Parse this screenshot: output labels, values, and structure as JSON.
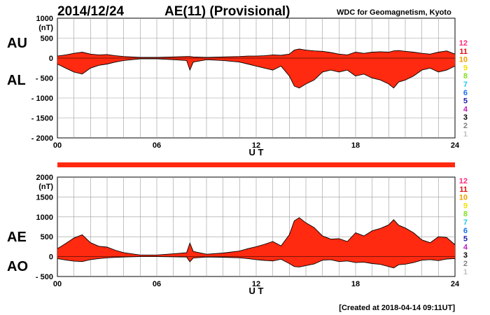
{
  "header": {
    "date": "2014/12/24",
    "title": "AE(11) (Provisional)",
    "source": "WDC for Geomagnetism, Kyoto"
  },
  "footer": {
    "created": "[Created at 2018-04-14 09:11UT]"
  },
  "colors": {
    "fill": "#ff2a10",
    "line": "#000000",
    "grid": "#999999",
    "band": "#ff2a10"
  },
  "station_legend": [
    {
      "label": "12",
      "color": "#ff2a7f"
    },
    {
      "label": "11",
      "color": "#e01010"
    },
    {
      "label": "10",
      "color": "#f0a000"
    },
    {
      "label": "9",
      "color": "#f0e000"
    },
    {
      "label": "8",
      "color": "#80e020"
    },
    {
      "label": "7",
      "color": "#20c8e8"
    },
    {
      "label": "6",
      "color": "#1870f0"
    },
    {
      "label": "5",
      "color": "#2020b0"
    },
    {
      "label": "4",
      "color": "#c020c0"
    },
    {
      "label": "3",
      "color": "#000000"
    },
    {
      "label": "2",
      "color": "#808080"
    },
    {
      "label": "1",
      "color": "#c0c0c0"
    }
  ],
  "chart_data": [
    {
      "type": "area",
      "upper_label": "AU",
      "lower_label": "AL",
      "unit": "(nT)",
      "xlabel": "U T",
      "xlim": [
        0,
        24
      ],
      "ylim": [
        -2000,
        1000
      ],
      "x_ticks": [
        "00",
        "06",
        "12",
        "18",
        "24"
      ],
      "y_ticks": [
        "1000",
        "500",
        "0",
        "- 500",
        "- 1000",
        "- 1500",
        "- 2000"
      ],
      "x": [
        0,
        0.5,
        1,
        1.5,
        2,
        2.5,
        3,
        3.5,
        4,
        5,
        6,
        7,
        7.8,
        8,
        8.2,
        9,
        10,
        11,
        11.5,
        12,
        12.5,
        13,
        13.5,
        14,
        14.3,
        14.6,
        15,
        15.5,
        16,
        16.5,
        17,
        17.5,
        18,
        18.5,
        19,
        19.5,
        20,
        20.3,
        20.6,
        21,
        21.5,
        22,
        22.5,
        23,
        23.5,
        24
      ],
      "series": [
        {
          "values": [
            50,
            80,
            120,
            150,
            100,
            80,
            90,
            60,
            40,
            20,
            20,
            30,
            40,
            40,
            30,
            20,
            30,
            40,
            50,
            50,
            60,
            80,
            70,
            100,
            200,
            230,
            200,
            180,
            170,
            140,
            100,
            80,
            150,
            120,
            150,
            160,
            150,
            180,
            190,
            170,
            150,
            120,
            100,
            150,
            180,
            100
          ]
        },
        {
          "values": [
            -150,
            -250,
            -350,
            -400,
            -250,
            -180,
            -150,
            -100,
            -60,
            -20,
            -20,
            -40,
            -60,
            -300,
            -100,
            -40,
            -60,
            -100,
            -150,
            -200,
            -250,
            -300,
            -200,
            -450,
            -700,
            -750,
            -650,
            -550,
            -350,
            -300,
            -350,
            -300,
            -450,
            -400,
            -500,
            -550,
            -650,
            -750,
            -600,
            -550,
            -450,
            -300,
            -250,
            -350,
            -300,
            -200
          ]
        }
      ]
    },
    {
      "type": "area",
      "upper_label": "AE",
      "lower_label": "AO",
      "unit": "(nT)",
      "xlabel": "U T",
      "xlim": [
        0,
        24
      ],
      "ylim": [
        -500,
        2000
      ],
      "x_ticks": [
        "00",
        "06",
        "12",
        "18",
        "24"
      ],
      "y_ticks": [
        "2000",
        "1500",
        "1000",
        "500",
        "0",
        "- 500"
      ],
      "x": [
        0,
        0.5,
        1,
        1.5,
        2,
        2.5,
        3,
        3.5,
        4,
        5,
        6,
        7,
        7.8,
        8,
        8.2,
        9,
        10,
        11,
        11.5,
        12,
        12.5,
        13,
        13.5,
        14,
        14.3,
        14.6,
        15,
        15.5,
        16,
        16.5,
        17,
        17.5,
        18,
        18.5,
        19,
        19.5,
        20,
        20.3,
        20.6,
        21,
        21.5,
        22,
        22.5,
        23,
        23.5,
        24
      ],
      "series": [
        {
          "values": [
            200,
            330,
            470,
            550,
            350,
            260,
            240,
            160,
            100,
            40,
            40,
            70,
            100,
            340,
            130,
            60,
            90,
            140,
            200,
            250,
            310,
            380,
            270,
            550,
            900,
            980,
            850,
            730,
            520,
            440,
            450,
            380,
            600,
            520,
            650,
            710,
            800,
            930,
            790,
            720,
            600,
            420,
            350,
            500,
            480,
            300
          ]
        },
        {
          "values": [
            -50,
            -85,
            -115,
            -125,
            -75,
            -50,
            -30,
            -20,
            -10,
            0,
            0,
            -5,
            -10,
            -130,
            -35,
            -10,
            -15,
            -30,
            -50,
            -75,
            -95,
            -110,
            -65,
            -175,
            -250,
            -260,
            -225,
            -185,
            -90,
            -80,
            -125,
            -110,
            -150,
            -140,
            -175,
            -195,
            -250,
            -285,
            -205,
            -190,
            -150,
            -90,
            -75,
            -100,
            -60,
            -50
          ]
        }
      ]
    }
  ]
}
